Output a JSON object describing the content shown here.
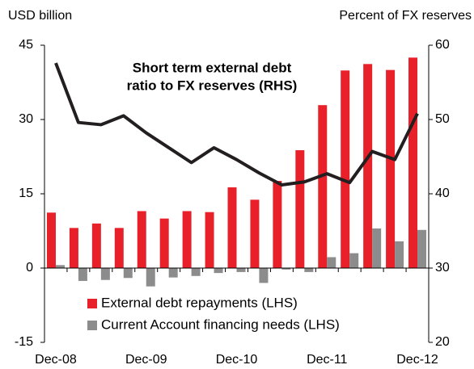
{
  "chart_data": {
    "type": "bar_line",
    "y_label": "USD billion",
    "y2_label": "Percent of FX reserves",
    "annotation": [
      "Short term external debt",
      "ratio to FX reserves (RHS)"
    ],
    "categories": [
      "Dec-08",
      null,
      null,
      null,
      "Dec-09",
      null,
      null,
      null,
      "Dec-10",
      null,
      null,
      null,
      "Dec-11",
      null,
      null,
      null,
      "Dec-12"
    ],
    "series": [
      {
        "name": "External debt repayments (LHS)",
        "color": "#e8202a",
        "type": "bar",
        "values": [
          11.2,
          8.1,
          9.0,
          8.1,
          11.5,
          10.0,
          11.5,
          11.3,
          16.3,
          13.8,
          17.6,
          23.8,
          32.9,
          39.9,
          41.2,
          40.0,
          42.5
        ]
      },
      {
        "name": "Current Account financing needs (LHS)",
        "color": "#8c8c8c",
        "type": "bar",
        "values": [
          0.6,
          -2.6,
          -2.4,
          -2.0,
          -3.7,
          -1.9,
          -1.6,
          -1.0,
          -0.8,
          -3.0,
          -0.3,
          -0.8,
          2.2,
          3.0,
          8.0,
          5.4,
          7.7
        ]
      },
      {
        "name": "Short term external debt ratio to FX reserves (RHS)",
        "color": "#231f20",
        "type": "line",
        "axis": "y2",
        "values": [
          57.6,
          49.6,
          49.3,
          50.5,
          48.2,
          46.2,
          44.2,
          46.2,
          44.6,
          42.8,
          41.2,
          41.6,
          42.7,
          41.5,
          45.7,
          44.6,
          50.8
        ]
      }
    ],
    "ylim": [
      -15,
      45
    ],
    "yticks": [
      -15,
      0,
      15,
      30,
      45
    ],
    "y2lim": [
      20,
      60
    ],
    "y2ticks": [
      20,
      30,
      40,
      50,
      60
    ]
  }
}
